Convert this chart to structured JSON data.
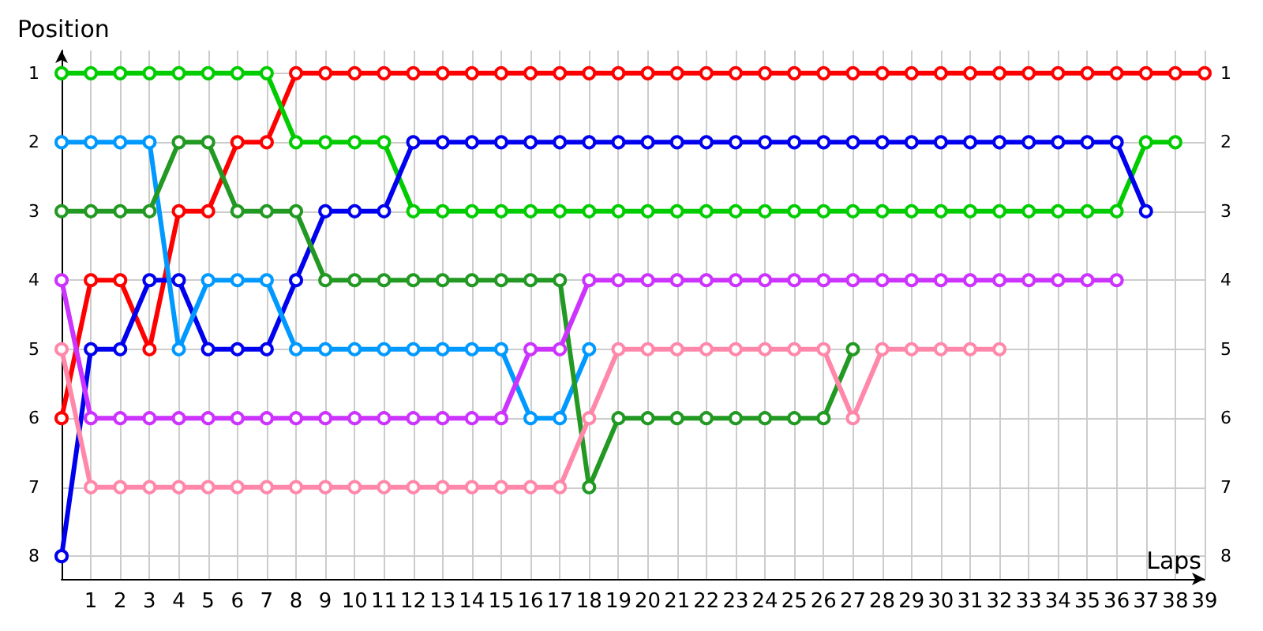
{
  "chart_data": {
    "type": "line",
    "xlabel": "Laps",
    "ylabel": "Position",
    "x": [
      0,
      1,
      2,
      3,
      4,
      5,
      6,
      7,
      8,
      9,
      10,
      11,
      12,
      13,
      14,
      15,
      16,
      17,
      18,
      19,
      20,
      21,
      22,
      23,
      24,
      25,
      26,
      27,
      28,
      29,
      30,
      31,
      32,
      33,
      34,
      35,
      36,
      37,
      38,
      39
    ],
    "series": [
      {
        "color": "#ff0000",
        "values": [
          6,
          4,
          4,
          5,
          3,
          3,
          2,
          2,
          1,
          1,
          1,
          1,
          1,
          1,
          1,
          1,
          1,
          1,
          1,
          1,
          1,
          1,
          1,
          1,
          1,
          1,
          1,
          1,
          1,
          1,
          1,
          1,
          1,
          1,
          1,
          1,
          1,
          1,
          1,
          1
        ]
      },
      {
        "color": "#00cc00",
        "values": [
          1,
          1,
          1,
          1,
          1,
          1,
          1,
          1,
          2,
          2,
          2,
          2,
          3,
          3,
          3,
          3,
          3,
          3,
          3,
          3,
          3,
          3,
          3,
          3,
          3,
          3,
          3,
          3,
          3,
          3,
          3,
          3,
          3,
          3,
          3,
          3,
          3,
          2,
          2,
          null
        ]
      },
      {
        "color": "#0000ee",
        "values": [
          8,
          5,
          5,
          4,
          4,
          5,
          5,
          5,
          4,
          3,
          3,
          3,
          2,
          2,
          2,
          2,
          2,
          2,
          2,
          2,
          2,
          2,
          2,
          2,
          2,
          2,
          2,
          2,
          2,
          2,
          2,
          2,
          2,
          2,
          2,
          2,
          2,
          3,
          null,
          null
        ]
      },
      {
        "color": "#0099ff",
        "values": [
          2,
          2,
          2,
          2,
          5,
          4,
          4,
          4,
          5,
          5,
          5,
          5,
          5,
          5,
          5,
          5,
          6,
          6,
          5,
          null,
          null,
          null,
          null,
          null,
          null,
          null,
          null,
          null,
          null,
          null,
          null,
          null,
          null,
          null,
          null,
          null,
          null,
          null,
          null,
          null
        ]
      },
      {
        "color": "#229922",
        "values": [
          3,
          3,
          3,
          3,
          2,
          2,
          3,
          3,
          3,
          4,
          4,
          4,
          4,
          4,
          4,
          4,
          4,
          4,
          7,
          6,
          6,
          6,
          6,
          6,
          6,
          6,
          6,
          5,
          null,
          null,
          null,
          null,
          null,
          null,
          null,
          null,
          null,
          null,
          null,
          null
        ]
      },
      {
        "color": "#cc33ff",
        "values": [
          4,
          6,
          6,
          6,
          6,
          6,
          6,
          6,
          6,
          6,
          6,
          6,
          6,
          6,
          6,
          6,
          5,
          5,
          4,
          4,
          4,
          4,
          4,
          4,
          4,
          4,
          4,
          4,
          4,
          4,
          4,
          4,
          4,
          4,
          4,
          4,
          4,
          null,
          null,
          null
        ]
      },
      {
        "color": "#ff88aa",
        "values": [
          5,
          7,
          7,
          7,
          7,
          7,
          7,
          7,
          7,
          7,
          7,
          7,
          7,
          7,
          7,
          7,
          7,
          7,
          6,
          5,
          5,
          5,
          5,
          5,
          5,
          5,
          5,
          6,
          5,
          5,
          5,
          5,
          5,
          null,
          null,
          null,
          null,
          null,
          null,
          null
        ]
      }
    ],
    "xlim": [
      0,
      39
    ],
    "xticks": [
      1,
      2,
      3,
      4,
      5,
      6,
      7,
      8,
      9,
      10,
      11,
      12,
      13,
      14,
      15,
      16,
      17,
      18,
      19,
      20,
      21,
      22,
      23,
      24,
      25,
      26,
      27,
      28,
      29,
      30,
      31,
      32,
      33,
      34,
      35,
      36,
      37,
      38,
      39
    ],
    "ylim": [
      8.33,
      0.67
    ],
    "yticks": [
      1,
      2,
      3,
      4,
      5,
      6,
      7,
      8
    ],
    "y2lim": [
      8.33,
      0.67
    ],
    "y2ticks": [
      1,
      2,
      3,
      4,
      5,
      6,
      7,
      8
    ],
    "grid": true,
    "marker": "circle",
    "line_style": "solid"
  }
}
